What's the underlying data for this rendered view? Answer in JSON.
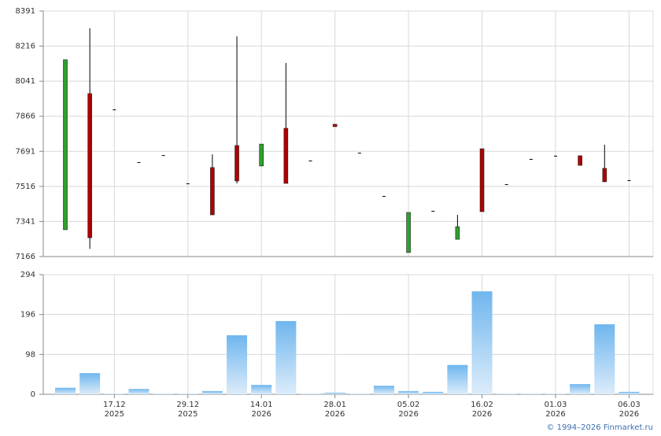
{
  "chart_data": [
    {
      "type": "candlestick",
      "open": [
        7300,
        7979,
        7900,
        7637,
        7672,
        7531,
        7610,
        7720,
        7618,
        7806,
        7645,
        7826,
        7684,
        7468,
        7186,
        7394,
        7252,
        7704,
        7527,
        7653,
        7669,
        7669,
        7606,
        7547
      ],
      "high": [
        8148,
        8305,
        7900,
        7637,
        7672,
        7531,
        7676,
        8265,
        7727,
        8132,
        7645,
        7826,
        7684,
        7468,
        7386,
        7394,
        7374,
        7704,
        7527,
        7653,
        7669,
        7669,
        7724,
        7547
      ],
      "low": [
        7300,
        7205,
        7900,
        7637,
        7672,
        7531,
        7374,
        7531,
        7618,
        7531,
        7645,
        7814,
        7684,
        7468,
        7186,
        7394,
        7252,
        7390,
        7527,
        7653,
        7669,
        7621,
        7539,
        7547
      ],
      "close": [
        8148,
        7260,
        7900,
        7637,
        7672,
        7531,
        7374,
        7543,
        7727,
        7531,
        7645,
        7814,
        7684,
        7468,
        7386,
        7394,
        7315,
        7390,
        7527,
        7653,
        7669,
        7621,
        7539,
        7547
      ],
      "up_color": "#2ea02e",
      "down_color": "#b00000",
      "ylim": [
        7166,
        8391
      ],
      "yticks": [
        7166,
        7341,
        7516,
        7691,
        7866,
        8041,
        8216,
        8391
      ],
      "grid": true
    },
    {
      "type": "bar",
      "categories": [
        null,
        null,
        [
          "17.12",
          "2025"
        ],
        null,
        null,
        [
          "29.12",
          "2025"
        ],
        null,
        null,
        [
          "14.01",
          "2026"
        ],
        null,
        null,
        [
          "28.01",
          "2026"
        ],
        null,
        null,
        [
          "05.02",
          "2026"
        ],
        null,
        null,
        [
          "16.02",
          "2026"
        ],
        null,
        null,
        [
          "01.03",
          "2026"
        ],
        null,
        null,
        [
          "06.03",
          "2026"
        ]
      ],
      "values": [
        16,
        52,
        1,
        13,
        1,
        1,
        8,
        145,
        23,
        180,
        1,
        4,
        1,
        21,
        8,
        6,
        72,
        253,
        1,
        1,
        1,
        25,
        172,
        6
      ],
      "color": "#6fb6ee",
      "ylim": [
        0,
        294
      ],
      "yticks": [
        0,
        98,
        196,
        294
      ],
      "grid": true
    }
  ],
  "footer": "© 1994–2026 Finmarket.ru"
}
